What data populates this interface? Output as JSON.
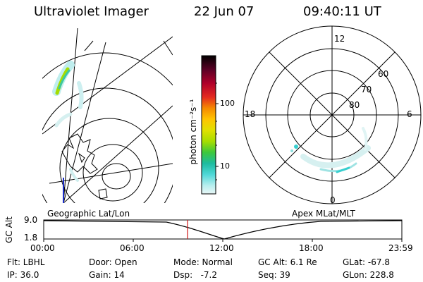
{
  "header": {
    "title": "Ultraviolet Imager",
    "date": "22 Jun 07",
    "time": "09:40:11 UT"
  },
  "colorbar": {
    "unit_label": "photon cm⁻²s⁻¹",
    "ticks": [
      "100",
      "10"
    ],
    "colors": [
      "#000000",
      "#5a0025",
      "#9b0030",
      "#d40020",
      "#e84020",
      "#f57a00",
      "#ffb000",
      "#e8e000",
      "#a6dd00",
      "#3cc83c",
      "#1eb98c",
      "#37d2d2",
      "#8ce6e6",
      "#d8f2f2"
    ]
  },
  "left_map": {
    "label": "Geographic Lat/Lon"
  },
  "right_polar": {
    "label": "Apex  MLat/MLT",
    "mlt_labels": [
      "12",
      "18",
      "6",
      "0"
    ],
    "lat_labels": [
      "60",
      "70",
      "80"
    ]
  },
  "altitude_plot": {
    "ylabel": "GC Alt",
    "ytick_top": "9.0",
    "ytick_bottom": "1.8",
    "xticks": [
      "00:00",
      "06:00",
      "12:00",
      "18:00",
      "23:59"
    ],
    "current_time_marker": "09:40"
  },
  "info": {
    "filter": "Flt: LBHL",
    "ip": "IP: 36.0",
    "door": "Door: Open",
    "gain": "Gain: 14",
    "mode": "Mode: Normal",
    "dsp": "Dsp:   -7.2",
    "gc_alt": "GC Alt: 6.1 Re",
    "seq": "Seq: 39",
    "glat": "GLat: -67.8",
    "glon": "GLon: 228.8"
  }
}
